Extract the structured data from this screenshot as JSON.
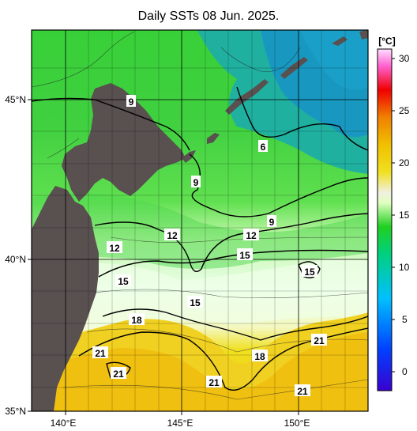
{
  "title": "Daily SSTs 08 Jun. 2025.",
  "map": {
    "lat_labels": [
      "45°N",
      "40°N",
      "35°N"
    ],
    "lon_labels": [
      "140°E",
      "145°E",
      "150°E"
    ],
    "contour_labels": [
      "9",
      "6",
      "9",
      "9",
      "12",
      "12",
      "12",
      "15",
      "15",
      "15",
      "15",
      "18",
      "18",
      "21",
      "21",
      "21",
      "21",
      "21"
    ]
  },
  "colorbar": {
    "unit": "[°C]",
    "ticks": [
      "30",
      "25",
      "20",
      "15",
      "10",
      "5",
      "0"
    ],
    "stops": [
      "#3a00d0",
      "#0040ff",
      "#00c0ff",
      "#00d080",
      "#20d020",
      "#e0ffc0",
      "#f0f0f0",
      "#f0e020",
      "#f0c000",
      "#f08000",
      "#f00000",
      "#ff60d0",
      "#ffe0ff"
    ]
  },
  "colors": {
    "land": "#595050",
    "cold_water": "#1fa6b8",
    "mid_water": "#30d040",
    "warm_water": "#e8ffe0",
    "hot_water": "#f0c810"
  }
}
